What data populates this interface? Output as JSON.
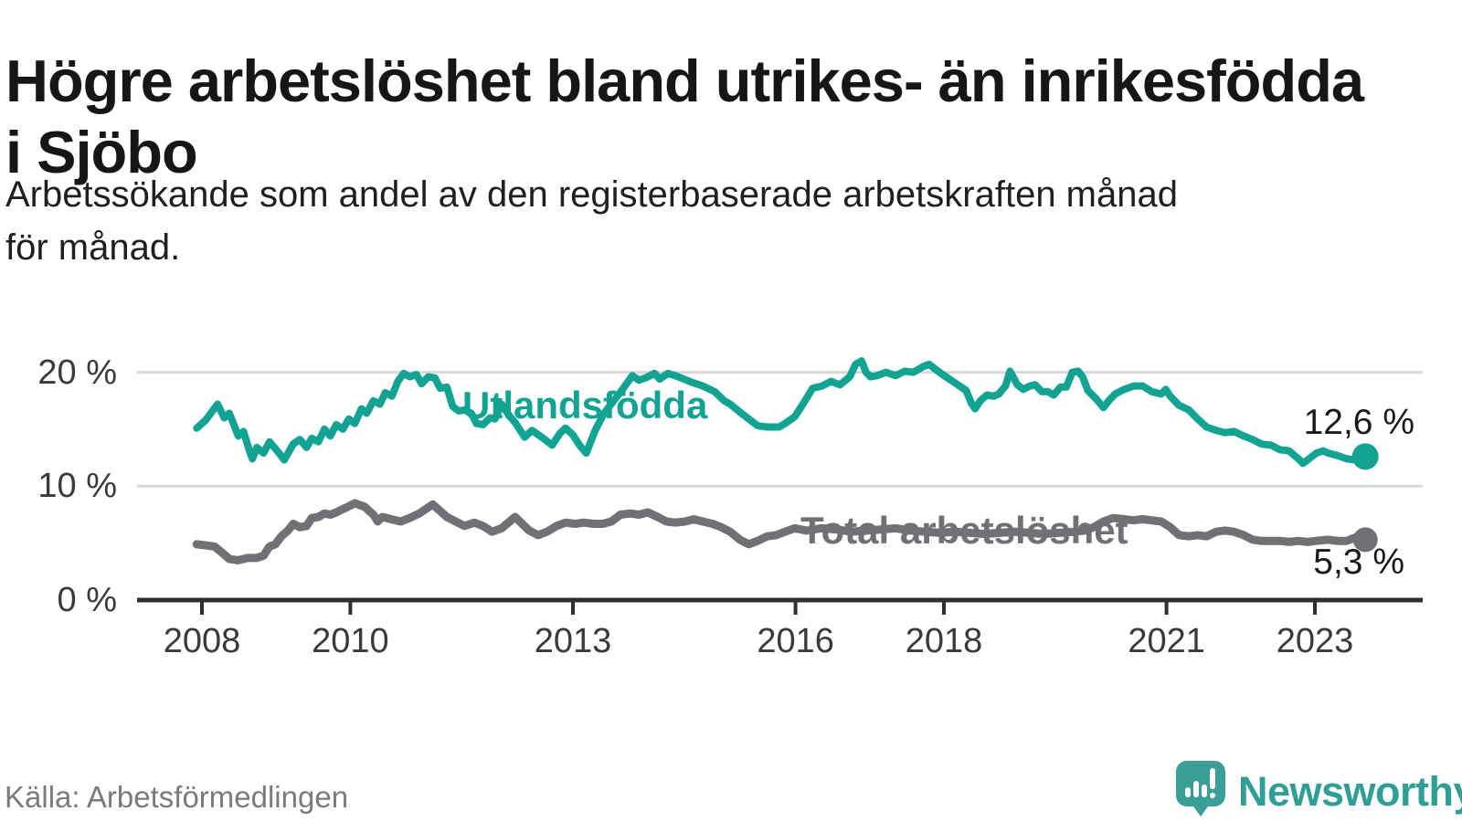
{
  "title": "Högre arbetslöshet bland utrikes- än inrikesfödda i Sjöbo",
  "subtitle_lines": [
    "Arbetssökande som andel av den registerbaserade arbetskraften månad",
    "för månad."
  ],
  "source": "Källa: Arbetsförmedlingen",
  "branding": {
    "name": "Newsworthy",
    "icon": "newsworthy-speech-bubble-chart-icon",
    "color": "#2f9f95"
  },
  "colors": {
    "foreign_born_line": "#12a392",
    "total_line": "#717074",
    "axis": "#2f2f33",
    "gridline": "#d9d9d9",
    "tick_label": "#3a3a3e",
    "value_label": "#1a1a1a"
  },
  "chart_data": {
    "type": "line",
    "title": "Högre arbetslöshet bland utrikes- än inrikesfödda i Sjöbo",
    "xlabel": "",
    "ylabel": "Arbetssökande som andel av den registerbaserade arbetskraften",
    "x_ticks": [
      2008,
      2010,
      2013,
      2016,
      2018,
      2021,
      2023
    ],
    "y_ticks": [
      {
        "value": 0,
        "label": "0 %"
      },
      {
        "value": 10,
        "label": "10 %"
      },
      {
        "value": 20,
        "label": "20 %"
      }
    ],
    "xlim": [
      2007.75,
      2024.15
    ],
    "ylim": [
      0,
      22
    ],
    "grid": "horizontal",
    "legend_position": "inline-labels",
    "series": [
      {
        "name": "Utlandsfödda",
        "color": "#12a392",
        "end_label": "12,6 %",
        "last_value": 12.6,
        "points": [
          [
            2007.93,
            15.1
          ],
          [
            2008.05,
            15.8
          ],
          [
            2008.21,
            17.2
          ],
          [
            2008.3,
            16.0
          ],
          [
            2008.37,
            16.4
          ],
          [
            2008.49,
            14.4
          ],
          [
            2008.56,
            14.8
          ],
          [
            2008.64,
            13.1
          ],
          [
            2008.68,
            12.4
          ],
          [
            2008.74,
            13.4
          ],
          [
            2008.83,
            12.9
          ],
          [
            2008.91,
            13.9
          ],
          [
            2009.04,
            12.9
          ],
          [
            2009.11,
            12.3
          ],
          [
            2009.23,
            13.7
          ],
          [
            2009.32,
            14.1
          ],
          [
            2009.41,
            13.4
          ],
          [
            2009.48,
            14.2
          ],
          [
            2009.57,
            13.9
          ],
          [
            2009.65,
            15.0
          ],
          [
            2009.73,
            14.4
          ],
          [
            2009.81,
            15.4
          ],
          [
            2009.9,
            15.0
          ],
          [
            2009.98,
            15.9
          ],
          [
            2010.06,
            15.5
          ],
          [
            2010.15,
            16.8
          ],
          [
            2010.22,
            16.4
          ],
          [
            2010.31,
            17.5
          ],
          [
            2010.4,
            17.2
          ],
          [
            2010.47,
            18.2
          ],
          [
            2010.56,
            17.9
          ],
          [
            2010.64,
            19.2
          ],
          [
            2010.72,
            19.9
          ],
          [
            2010.8,
            19.6
          ],
          [
            2010.89,
            19.8
          ],
          [
            2010.96,
            19.0
          ],
          [
            2011.05,
            19.6
          ],
          [
            2011.14,
            19.5
          ],
          [
            2011.21,
            18.6
          ],
          [
            2011.3,
            18.7
          ],
          [
            2011.38,
            17.0
          ],
          [
            2011.46,
            16.6
          ],
          [
            2011.54,
            16.7
          ],
          [
            2011.63,
            16.4
          ],
          [
            2011.7,
            15.5
          ],
          [
            2011.79,
            15.4
          ],
          [
            2011.88,
            16.0
          ],
          [
            2011.95,
            15.9
          ],
          [
            2012.04,
            17.2
          ],
          [
            2012.14,
            16.2
          ],
          [
            2012.22,
            15.6
          ],
          [
            2012.35,
            14.3
          ],
          [
            2012.45,
            14.9
          ],
          [
            2012.6,
            14.2
          ],
          [
            2012.72,
            13.6
          ],
          [
            2012.82,
            14.6
          ],
          [
            2012.9,
            15.1
          ],
          [
            2013.0,
            14.5
          ],
          [
            2013.1,
            13.5
          ],
          [
            2013.18,
            12.9
          ],
          [
            2013.3,
            14.9
          ],
          [
            2013.42,
            16.4
          ],
          [
            2013.55,
            17.5
          ],
          [
            2013.68,
            18.6
          ],
          [
            2013.8,
            19.7
          ],
          [
            2013.89,
            19.3
          ],
          [
            2014.01,
            19.6
          ],
          [
            2014.1,
            19.9
          ],
          [
            2014.17,
            19.4
          ],
          [
            2014.28,
            19.9
          ],
          [
            2014.38,
            19.7
          ],
          [
            2014.57,
            19.2
          ],
          [
            2014.75,
            18.8
          ],
          [
            2014.91,
            18.3
          ],
          [
            2015.04,
            17.5
          ],
          [
            2015.12,
            17.2
          ],
          [
            2015.25,
            16.5
          ],
          [
            2015.37,
            15.9
          ],
          [
            2015.49,
            15.3
          ],
          [
            2015.62,
            15.2
          ],
          [
            2015.78,
            15.2
          ],
          [
            2015.86,
            15.5
          ],
          [
            2015.99,
            16.1
          ],
          [
            2016.11,
            17.3
          ],
          [
            2016.23,
            18.6
          ],
          [
            2016.36,
            18.8
          ],
          [
            2016.48,
            19.2
          ],
          [
            2016.6,
            18.9
          ],
          [
            2016.73,
            19.6
          ],
          [
            2016.81,
            20.7
          ],
          [
            2016.89,
            21.0
          ],
          [
            2016.95,
            20.0
          ],
          [
            2017.01,
            19.6
          ],
          [
            2017.1,
            19.7
          ],
          [
            2017.22,
            20.0
          ],
          [
            2017.35,
            19.7
          ],
          [
            2017.47,
            20.1
          ],
          [
            2017.59,
            20.0
          ],
          [
            2017.72,
            20.5
          ],
          [
            2017.8,
            20.7
          ],
          [
            2017.88,
            20.3
          ],
          [
            2017.96,
            19.9
          ],
          [
            2018.05,
            19.5
          ],
          [
            2018.12,
            19.2
          ],
          [
            2018.21,
            18.8
          ],
          [
            2018.3,
            18.4
          ],
          [
            2018.37,
            17.3
          ],
          [
            2018.42,
            16.8
          ],
          [
            2018.49,
            17.5
          ],
          [
            2018.58,
            18.0
          ],
          [
            2018.67,
            17.9
          ],
          [
            2018.74,
            18.1
          ],
          [
            2018.83,
            18.8
          ],
          [
            2018.89,
            20.1
          ],
          [
            2018.99,
            18.9
          ],
          [
            2019.07,
            18.5
          ],
          [
            2019.16,
            18.8
          ],
          [
            2019.23,
            18.9
          ],
          [
            2019.32,
            18.3
          ],
          [
            2019.4,
            18.3
          ],
          [
            2019.48,
            18.0
          ],
          [
            2019.57,
            18.7
          ],
          [
            2019.65,
            18.7
          ],
          [
            2019.73,
            20.0
          ],
          [
            2019.81,
            20.1
          ],
          [
            2019.87,
            19.6
          ],
          [
            2019.94,
            18.4
          ],
          [
            2020.06,
            17.6
          ],
          [
            2020.15,
            16.9
          ],
          [
            2020.22,
            17.5
          ],
          [
            2020.31,
            18.1
          ],
          [
            2020.43,
            18.5
          ],
          [
            2020.56,
            18.8
          ],
          [
            2020.68,
            18.8
          ],
          [
            2020.8,
            18.3
          ],
          [
            2020.93,
            18.1
          ],
          [
            2020.99,
            18.5
          ],
          [
            2021.05,
            17.9
          ],
          [
            2021.17,
            17.1
          ],
          [
            2021.3,
            16.7
          ],
          [
            2021.42,
            15.9
          ],
          [
            2021.54,
            15.2
          ],
          [
            2021.67,
            14.9
          ],
          [
            2021.79,
            14.7
          ],
          [
            2021.91,
            14.8
          ],
          [
            2022.04,
            14.4
          ],
          [
            2022.16,
            14.1
          ],
          [
            2022.28,
            13.7
          ],
          [
            2022.41,
            13.6
          ],
          [
            2022.53,
            13.2
          ],
          [
            2022.65,
            13.1
          ],
          [
            2022.78,
            12.4
          ],
          [
            2022.84,
            12.0
          ],
          [
            2022.9,
            12.3
          ],
          [
            2023.02,
            12.9
          ],
          [
            2023.11,
            13.1
          ],
          [
            2023.18,
            12.9
          ],
          [
            2023.3,
            12.7
          ],
          [
            2023.43,
            12.4
          ],
          [
            2023.55,
            12.3
          ],
          [
            2023.64,
            12.5
          ],
          [
            2023.68,
            12.6
          ]
        ]
      },
      {
        "name": "Total arbetslöshet",
        "color": "#717074",
        "end_label": "5,3 %",
        "last_value": 5.3,
        "points": [
          [
            2007.93,
            4.9
          ],
          [
            2008.05,
            4.8
          ],
          [
            2008.17,
            4.7
          ],
          [
            2008.3,
            4.0
          ],
          [
            2008.37,
            3.6
          ],
          [
            2008.49,
            3.5
          ],
          [
            2008.62,
            3.7
          ],
          [
            2008.74,
            3.7
          ],
          [
            2008.83,
            3.9
          ],
          [
            2008.91,
            4.7
          ],
          [
            2008.99,
            4.9
          ],
          [
            2009.07,
            5.6
          ],
          [
            2009.16,
            6.1
          ],
          [
            2009.23,
            6.7
          ],
          [
            2009.32,
            6.4
          ],
          [
            2009.41,
            6.5
          ],
          [
            2009.48,
            7.2
          ],
          [
            2009.57,
            7.3
          ],
          [
            2009.65,
            7.6
          ],
          [
            2009.73,
            7.5
          ],
          [
            2009.81,
            7.7
          ],
          [
            2009.9,
            8.0
          ],
          [
            2009.94,
            8.1
          ],
          [
            2010.06,
            8.5
          ],
          [
            2010.19,
            8.2
          ],
          [
            2010.31,
            7.5
          ],
          [
            2010.37,
            6.9
          ],
          [
            2010.43,
            7.3
          ],
          [
            2010.55,
            7.1
          ],
          [
            2010.68,
            6.9
          ],
          [
            2010.8,
            7.2
          ],
          [
            2010.93,
            7.6
          ],
          [
            2011.11,
            8.4
          ],
          [
            2011.3,
            7.3
          ],
          [
            2011.42,
            6.9
          ],
          [
            2011.54,
            6.5
          ],
          [
            2011.67,
            6.8
          ],
          [
            2011.79,
            6.5
          ],
          [
            2011.91,
            6.0
          ],
          [
            2012.04,
            6.3
          ],
          [
            2012.22,
            7.3
          ],
          [
            2012.41,
            6.1
          ],
          [
            2012.53,
            5.7
          ],
          [
            2012.65,
            6.0
          ],
          [
            2012.78,
            6.5
          ],
          [
            2012.9,
            6.8
          ],
          [
            2013.03,
            6.7
          ],
          [
            2013.15,
            6.8
          ],
          [
            2013.28,
            6.7
          ],
          [
            2013.4,
            6.7
          ],
          [
            2013.52,
            6.9
          ],
          [
            2013.64,
            7.5
          ],
          [
            2013.77,
            7.6
          ],
          [
            2013.89,
            7.5
          ],
          [
            2014.01,
            7.7
          ],
          [
            2014.14,
            7.3
          ],
          [
            2014.26,
            6.9
          ],
          [
            2014.38,
            6.8
          ],
          [
            2014.51,
            6.9
          ],
          [
            2014.63,
            7.1
          ],
          [
            2014.75,
            6.9
          ],
          [
            2014.88,
            6.7
          ],
          [
            2015.0,
            6.4
          ],
          [
            2015.12,
            6.0
          ],
          [
            2015.25,
            5.3
          ],
          [
            2015.37,
            4.9
          ],
          [
            2015.49,
            5.2
          ],
          [
            2015.62,
            5.6
          ],
          [
            2015.74,
            5.7
          ],
          [
            2015.86,
            6.0
          ],
          [
            2015.99,
            6.3
          ],
          [
            2016.15,
            6.1
          ],
          [
            2016.35,
            6.3
          ],
          [
            2016.55,
            6.2
          ],
          [
            2016.75,
            6.0
          ],
          [
            2016.95,
            6.1
          ],
          [
            2017.15,
            6.2
          ],
          [
            2017.35,
            6.3
          ],
          [
            2017.55,
            6.1
          ],
          [
            2017.75,
            6.0
          ],
          [
            2017.95,
            5.9
          ],
          [
            2018.15,
            6.0
          ],
          [
            2018.35,
            5.9
          ],
          [
            2018.55,
            5.8
          ],
          [
            2018.75,
            5.9
          ],
          [
            2018.95,
            6.0
          ],
          [
            2019.15,
            5.9
          ],
          [
            2019.35,
            5.8
          ],
          [
            2019.55,
            5.9
          ],
          [
            2019.75,
            6.0
          ],
          [
            2019.9,
            6.1
          ],
          [
            2020.02,
            6.4
          ],
          [
            2020.15,
            6.9
          ],
          [
            2020.28,
            7.2
          ],
          [
            2020.43,
            7.1
          ],
          [
            2020.55,
            7.0
          ],
          [
            2020.68,
            7.1
          ],
          [
            2020.8,
            7.0
          ],
          [
            2020.93,
            6.9
          ],
          [
            2021.05,
            6.4
          ],
          [
            2021.17,
            5.7
          ],
          [
            2021.3,
            5.6
          ],
          [
            2021.42,
            5.7
          ],
          [
            2021.54,
            5.6
          ],
          [
            2021.67,
            6.0
          ],
          [
            2021.79,
            6.1
          ],
          [
            2021.91,
            6.0
          ],
          [
            2022.04,
            5.7
          ],
          [
            2022.16,
            5.3
          ],
          [
            2022.28,
            5.2
          ],
          [
            2022.41,
            5.2
          ],
          [
            2022.53,
            5.2
          ],
          [
            2022.65,
            5.1
          ],
          [
            2022.78,
            5.2
          ],
          [
            2022.9,
            5.1
          ],
          [
            2023.02,
            5.2
          ],
          [
            2023.18,
            5.3
          ],
          [
            2023.3,
            5.2
          ],
          [
            2023.43,
            5.2
          ],
          [
            2023.55,
            5.5
          ],
          [
            2023.64,
            5.6
          ],
          [
            2023.68,
            5.3
          ]
        ]
      }
    ]
  }
}
